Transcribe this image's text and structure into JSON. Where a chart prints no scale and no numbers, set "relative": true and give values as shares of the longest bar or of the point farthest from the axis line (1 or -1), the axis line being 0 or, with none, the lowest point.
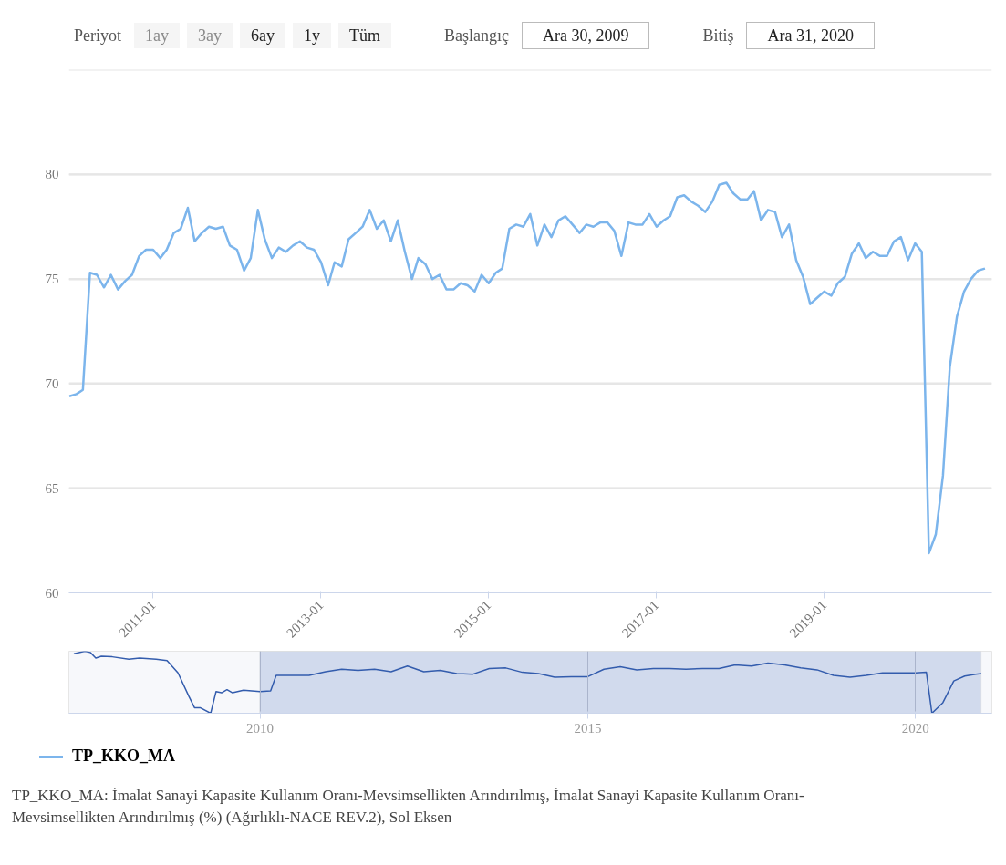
{
  "chart_data": [
    {
      "type": "line",
      "x": [
        "2010-01",
        "2010-02",
        "2010-03",
        "2010-04",
        "2010-05",
        "2010-06",
        "2010-07",
        "2010-08",
        "2010-09",
        "2010-10",
        "2010-11",
        "2010-12",
        "2011-01",
        "2011-02",
        "2011-03",
        "2011-04",
        "2011-05",
        "2011-06",
        "2011-07",
        "2011-08",
        "2011-09",
        "2011-10",
        "2011-11",
        "2011-12",
        "2012-01",
        "2012-02",
        "2012-03",
        "2012-04",
        "2012-05",
        "2012-06",
        "2012-07",
        "2012-08",
        "2012-09",
        "2012-10",
        "2012-11",
        "2012-12",
        "2013-01",
        "2013-02",
        "2013-03",
        "2013-04",
        "2013-05",
        "2013-06",
        "2013-07",
        "2013-08",
        "2013-09",
        "2013-10",
        "2013-11",
        "2013-12",
        "2014-01",
        "2014-02",
        "2014-03",
        "2014-04",
        "2014-05",
        "2014-06",
        "2014-07",
        "2014-08",
        "2014-09",
        "2014-10",
        "2014-11",
        "2014-12",
        "2015-01",
        "2015-02",
        "2015-03",
        "2015-04",
        "2015-05",
        "2015-06",
        "2015-07",
        "2015-08",
        "2015-09",
        "2015-10",
        "2015-11",
        "2015-12",
        "2016-01",
        "2016-02",
        "2016-03",
        "2016-04",
        "2016-05",
        "2016-06",
        "2016-07",
        "2016-08",
        "2016-09",
        "2016-10",
        "2016-11",
        "2016-12",
        "2017-01",
        "2017-02",
        "2017-03",
        "2017-04",
        "2017-05",
        "2017-06",
        "2017-07",
        "2017-08",
        "2017-09",
        "2017-10",
        "2017-11",
        "2017-12",
        "2018-01",
        "2018-02",
        "2018-03",
        "2018-04",
        "2018-05",
        "2018-06",
        "2018-07",
        "2018-08",
        "2018-09",
        "2018-10",
        "2018-11",
        "2018-12",
        "2019-01",
        "2019-02",
        "2019-03",
        "2019-04",
        "2019-05",
        "2019-06",
        "2019-07",
        "2019-08",
        "2019-09",
        "2019-10",
        "2019-11",
        "2019-12",
        "2020-01",
        "2020-02",
        "2020-03",
        "2020-04",
        "2020-05",
        "2020-06",
        "2020-07",
        "2020-08",
        "2020-09",
        "2020-10",
        "2020-11",
        "2020-12"
      ],
      "series": [
        {
          "name": "TP_KKO_MA",
          "color": "#7cb5ec",
          "values": [
            69.4,
            69.5,
            69.7,
            75.3,
            75.2,
            74.6,
            75.2,
            74.5,
            74.9,
            75.2,
            76.1,
            76.4,
            76.4,
            76.0,
            76.4,
            77.2,
            77.4,
            78.4,
            76.8,
            77.2,
            77.5,
            77.4,
            77.5,
            76.6,
            76.4,
            75.4,
            76.0,
            78.3,
            76.9,
            76.0,
            76.5,
            76.3,
            76.6,
            76.8,
            76.5,
            76.4,
            75.8,
            74.7,
            75.8,
            75.6,
            76.9,
            77.2,
            77.5,
            78.3,
            77.4,
            77.8,
            76.8,
            77.8,
            76.3,
            75.0,
            76.0,
            75.7,
            75.0,
            75.2,
            74.5,
            74.5,
            74.8,
            74.7,
            74.4,
            75.2,
            74.8,
            75.3,
            75.5,
            77.4,
            77.6,
            77.5,
            78.1,
            76.6,
            77.6,
            77.0,
            77.8,
            78.0,
            77.6,
            77.2,
            77.6,
            77.5,
            77.7,
            77.7,
            77.3,
            76.1,
            77.7,
            77.6,
            77.6,
            78.1,
            77.5,
            77.8,
            78.0,
            78.9,
            79.0,
            78.7,
            78.5,
            78.2,
            78.7,
            79.5,
            79.6,
            79.1,
            78.8,
            78.8,
            79.2,
            77.8,
            78.3,
            78.2,
            77.0,
            77.6,
            75.9,
            75.1,
            73.8,
            74.1,
            74.4,
            74.2,
            74.8,
            75.1,
            76.2,
            76.7,
            76.0,
            76.3,
            76.1,
            76.1,
            76.8,
            77.0,
            75.9,
            76.7,
            76.3,
            61.9,
            62.8,
            65.6,
            70.8,
            73.2,
            74.4,
            75.0,
            75.4,
            75.5
          ]
        }
      ],
      "xlim": [
        "2009-12-30",
        "2020-12-31"
      ],
      "xticks": [
        "2011-01",
        "2013-01",
        "2015-01",
        "2017-01",
        "2019-01"
      ],
      "ylim": [
        60,
        85
      ],
      "yticks": [
        60,
        65,
        70,
        75,
        80,
        {
          "value": 85,
          "label": null
        }
      ],
      "grid": "y",
      "legend": "bottom",
      "annotations": [
        "Periyot",
        "1ay",
        "3ay",
        "6ay",
        "1y",
        "Tüm",
        "Başlangıç",
        "Ara 30, 2009",
        "Bitiş",
        "Ara 31, 2020",
        "TP_KKO_MA: İmalat Sanayi Kapasite Kullanım Oranı-Mevsimsellikten Arındırılmış, İmalat Sanayi Kapasite Kullanım Oranı-Mevsimsellikten Arındırılmış (%) (Ağırlıklı-NACE REV.2), Sol Eksen"
      ]
    },
    {
      "type": "line",
      "relative": true,
      "x": [
        "2007-03",
        "2007-05",
        "2007-06",
        "2007-07",
        "2007-08",
        "2007-10",
        "2008-01",
        "2008-03",
        "2008-06",
        "2008-08",
        "2008-10",
        "2008-12",
        "2009-01",
        "2009-02",
        "2009-04",
        "2009-05",
        "2009-06",
        "2009-07",
        "2009-08",
        "2009-10",
        "2010-01",
        "2010-03",
        "2010-04",
        "2010-07",
        "2010-10",
        "2011-01",
        "2011-04",
        "2011-07",
        "2011-10",
        "2012-01",
        "2012-04",
        "2012-07",
        "2012-10",
        "2013-01",
        "2013-04",
        "2013-07",
        "2013-10",
        "2014-01",
        "2014-04",
        "2014-07",
        "2014-10",
        "2015-01",
        "2015-04",
        "2015-07",
        "2015-10",
        "2016-01",
        "2016-04",
        "2016-07",
        "2016-10",
        "2017-01",
        "2017-04",
        "2017-07",
        "2017-10",
        "2018-01",
        "2018-04",
        "2018-07",
        "2018-10",
        "2019-01",
        "2019-04",
        "2019-07",
        "2019-10",
        "2020-01",
        "2020-03",
        "2020-04",
        "2020-06",
        "2020-08",
        "2020-10",
        "2020-12",
        "2021-01"
      ],
      "series": [
        {
          "color": "#335cad",
          "values": [
            0.96,
            1.0,
            0.98,
            0.89,
            0.92,
            0.91,
            0.87,
            0.89,
            0.87,
            0.85,
            0.65,
            0.27,
            0.09,
            0.09,
            0.0,
            0.35,
            0.33,
            0.38,
            0.33,
            0.37,
            0.35,
            0.36,
            0.61,
            0.61,
            0.61,
            0.67,
            0.71,
            0.69,
            0.71,
            0.67,
            0.76,
            0.67,
            0.69,
            0.64,
            0.63,
            0.72,
            0.73,
            0.66,
            0.64,
            0.58,
            0.59,
            0.59,
            0.71,
            0.75,
            0.7,
            0.72,
            0.72,
            0.71,
            0.72,
            0.72,
            0.78,
            0.76,
            0.81,
            0.78,
            0.73,
            0.7,
            0.61,
            0.58,
            0.61,
            0.65,
            0.65,
            0.65,
            0.66,
            0.0,
            0.17,
            0.52,
            0.6,
            0.63,
            0.64
          ]
        }
      ],
      "xlim": [
        "2007-02",
        "2021-03"
      ],
      "xticks": [
        "2010",
        "2015",
        "2020"
      ],
      "grid": "x",
      "tick_labels": "x",
      "bands": [
        {
          "axis": "x",
          "from": "2009-12-30",
          "to": "2020-12-31",
          "color": "#ccd6eb"
        }
      ]
    }
  ]
}
